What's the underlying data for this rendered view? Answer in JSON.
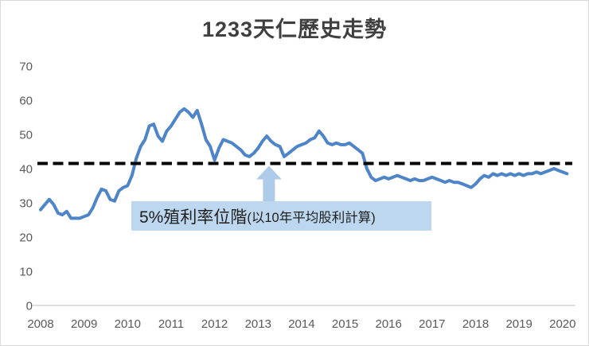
{
  "figure": {
    "title": "1233天仁歷史走勢"
  },
  "chart_data": {
    "type": "line",
    "title": "1233天仁歷史走勢",
    "xlabel": "",
    "ylabel": "",
    "xlim": [
      2008,
      2020.15
    ],
    "ylim": [
      0,
      70
    ],
    "xticks": [
      2008,
      2009,
      2010,
      2011,
      2012,
      2013,
      2014,
      2015,
      2016,
      2017,
      2018,
      2019,
      2020
    ],
    "yticks": [
      0,
      10,
      20,
      30,
      40,
      50,
      60,
      70
    ],
    "grid": false,
    "legend": "none",
    "line_color": "#4d85c8",
    "axis_color": "#bfbfbf",
    "tick_color": "#595959",
    "reference_line": {
      "value": 41.5,
      "style": "dashed",
      "color": "#000000"
    },
    "annotation": {
      "label_main": "5%殖利率位階",
      "label_sub": "(以10年平均股利計算)",
      "box_color": "#bdd7ee",
      "arrow_color": "#aecbea",
      "text_color": "#1f1f1f",
      "arrow_x": 2013.25
    },
    "x": [
      2008.0,
      2008.1,
      2008.2,
      2008.3,
      2008.4,
      2008.5,
      2008.6,
      2008.7,
      2008.8,
      2008.9,
      2009.0,
      2009.1,
      2009.2,
      2009.3,
      2009.4,
      2009.5,
      2009.6,
      2009.7,
      2009.8,
      2009.9,
      2010.0,
      2010.1,
      2010.2,
      2010.3,
      2010.4,
      2010.5,
      2010.6,
      2010.7,
      2010.8,
      2010.9,
      2011.0,
      2011.1,
      2011.2,
      2011.3,
      2011.4,
      2011.5,
      2011.6,
      2011.7,
      2011.8,
      2011.9,
      2012.0,
      2012.1,
      2012.2,
      2012.3,
      2012.4,
      2012.5,
      2012.6,
      2012.7,
      2012.8,
      2012.9,
      2013.0,
      2013.1,
      2013.2,
      2013.3,
      2013.4,
      2013.5,
      2013.6,
      2013.7,
      2013.8,
      2013.9,
      2014.0,
      2014.1,
      2014.2,
      2014.3,
      2014.4,
      2014.5,
      2014.6,
      2014.7,
      2014.8,
      2014.9,
      2015.0,
      2015.1,
      2015.2,
      2015.3,
      2015.4,
      2015.5,
      2015.6,
      2015.7,
      2015.8,
      2015.9,
      2016.0,
      2016.1,
      2016.2,
      2016.3,
      2016.4,
      2016.5,
      2016.6,
      2016.7,
      2016.8,
      2016.9,
      2017.0,
      2017.1,
      2017.2,
      2017.3,
      2017.4,
      2017.5,
      2017.6,
      2017.7,
      2017.8,
      2017.9,
      2018.0,
      2018.1,
      2018.2,
      2018.3,
      2018.4,
      2018.5,
      2018.6,
      2018.7,
      2018.8,
      2018.9,
      2019.0,
      2019.1,
      2019.2,
      2019.3,
      2019.4,
      2019.5,
      2019.6,
      2019.7,
      2019.8,
      2019.9,
      2020.0,
      2020.1
    ],
    "series": [
      {
        "name": "1233天仁",
        "values": [
          28,
          29.5,
          31,
          29.5,
          27,
          26.5,
          27.5,
          25.5,
          25.5,
          25.5,
          26,
          26.5,
          28.5,
          31.5,
          34,
          33.5,
          31,
          30.5,
          33.5,
          34.5,
          35,
          38,
          43,
          46.5,
          48.5,
          52.5,
          53,
          49.5,
          48,
          51,
          52.5,
          54.5,
          56.5,
          57.5,
          56.5,
          55,
          57,
          53,
          48.5,
          46.5,
          42.5,
          46,
          48.5,
          48,
          47.5,
          46.5,
          45.5,
          44,
          43.5,
          44.5,
          46,
          48,
          49.5,
          48,
          47,
          46.5,
          43.5,
          44.5,
          45.5,
          46.5,
          47,
          47.5,
          48.5,
          49,
          51,
          49.5,
          47.5,
          47,
          47.5,
          47,
          47,
          47.5,
          46.5,
          45.5,
          44.5,
          40,
          37.5,
          36.5,
          37,
          37.5,
          37,
          37.5,
          38,
          37.5,
          37,
          36.5,
          37,
          36.5,
          36.5,
          37,
          37.5,
          37,
          36.5,
          36,
          36.5,
          36,
          36,
          35.5,
          35,
          34.5,
          35.5,
          37,
          38,
          37.5,
          38.5,
          38,
          38.5,
          38,
          38.5,
          38,
          38.5,
          38,
          38.5,
          38.5,
          39,
          38.5,
          39,
          39.5,
          40,
          39.5,
          39,
          38.5
        ]
      }
    ]
  }
}
